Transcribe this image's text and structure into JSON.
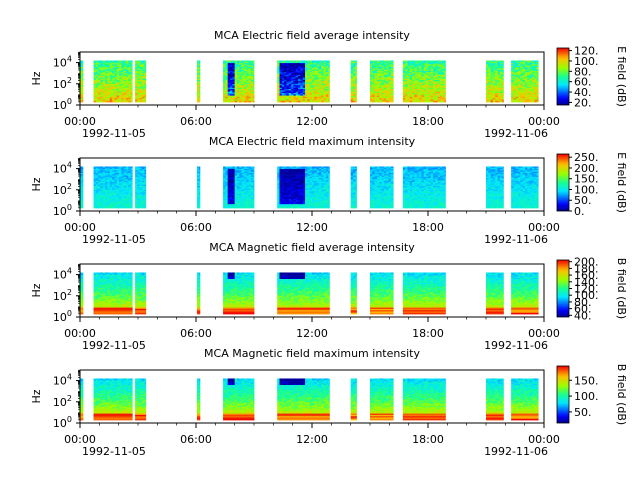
{
  "chart_data": [
    {
      "type": "heatmap",
      "title": "MCA  Electric field average intensity",
      "ylabel": "Hz",
      "y_scale": "log",
      "ylim": [
        1,
        100000
      ],
      "y_ticks": [
        {
          "exp": "0"
        },
        {
          "exp": "2"
        },
        {
          "exp": "4"
        }
      ],
      "x_range_hours": [
        0,
        24
      ],
      "x_ticks": [
        {
          "hour": 0,
          "label": "00:00"
        },
        {
          "hour": 6,
          "label": "06:00"
        },
        {
          "hour": 12,
          "label": "12:00"
        },
        {
          "hour": 18,
          "label": "18:00"
        },
        {
          "hour": 24,
          "label": "00:00"
        }
      ],
      "date_start": "1992-11-05",
      "date_end": "1992-11-06",
      "colorbar": {
        "label": "E field (dB)",
        "range": [
          15,
          125
        ],
        "ticks": [
          "20.",
          "40.",
          "60.",
          "80.",
          "100.",
          "120."
        ]
      },
      "style": "efield_avg",
      "data_segments_hours": [
        [
          0.0,
          0.15
        ],
        [
          0.7,
          2.7
        ],
        [
          2.85,
          3.4
        ],
        [
          6.05,
          6.2
        ],
        [
          7.4,
          9.0
        ],
        [
          10.2,
          12.9
        ],
        [
          14.0,
          14.3
        ],
        [
          15.0,
          16.2
        ],
        [
          16.7,
          18.9
        ],
        [
          21.0,
          21.9
        ],
        [
          22.3,
          23.7
        ]
      ]
    },
    {
      "type": "heatmap",
      "title": "MCA  Electric field maximum intensity",
      "ylabel": "Hz",
      "y_scale": "log",
      "ylim": [
        1,
        100000
      ],
      "y_ticks": [
        {
          "exp": "0"
        },
        {
          "exp": "2"
        },
        {
          "exp": "4"
        }
      ],
      "x_range_hours": [
        0,
        24
      ],
      "x_ticks": [
        {
          "hour": 0,
          "label": "00:00"
        },
        {
          "hour": 6,
          "label": "06:00"
        },
        {
          "hour": 12,
          "label": "12:00"
        },
        {
          "hour": 18,
          "label": "18:00"
        },
        {
          "hour": 24,
          "label": "00:00"
        }
      ],
      "date_start": "1992-11-05",
      "date_end": "1992-11-06",
      "colorbar": {
        "label": "E field (dB)",
        "range": [
          0,
          265
        ],
        "ticks": [
          "0.",
          "50.",
          "100.",
          "150.",
          "200.",
          "250."
        ]
      },
      "style": "efield_max",
      "data_segments_hours": [
        [
          0.0,
          0.15
        ],
        [
          0.7,
          2.7
        ],
        [
          2.85,
          3.4
        ],
        [
          6.05,
          6.2
        ],
        [
          7.4,
          9.0
        ],
        [
          10.2,
          12.9
        ],
        [
          14.0,
          14.3
        ],
        [
          15.0,
          16.2
        ],
        [
          16.7,
          18.9
        ],
        [
          21.0,
          21.9
        ],
        [
          22.3,
          23.7
        ]
      ]
    },
    {
      "type": "heatmap",
      "title": "MCA  Magnetic field average intensity",
      "ylabel": "Hz",
      "y_scale": "log",
      "ylim": [
        1,
        100000
      ],
      "y_ticks": [
        {
          "exp": "0"
        },
        {
          "exp": "2"
        },
        {
          "exp": "4"
        }
      ],
      "x_range_hours": [
        0,
        24
      ],
      "x_ticks": [
        {
          "hour": 0,
          "label": "00:00"
        },
        {
          "hour": 6,
          "label": "06:00"
        },
        {
          "hour": 12,
          "label": "12:00"
        },
        {
          "hour": 18,
          "label": "18:00"
        },
        {
          "hour": 24,
          "label": "00:00"
        }
      ],
      "date_start": "1992-11-05",
      "date_end": "1992-11-06",
      "colorbar": {
        "label": "B field (dB)",
        "range": [
          35,
          205
        ],
        "ticks": [
          "40.",
          "60.",
          "80.",
          "100.",
          "120.",
          "140.",
          "160.",
          "180.",
          "200."
        ]
      },
      "style": "bfield",
      "data_segments_hours": [
        [
          0.0,
          0.15
        ],
        [
          0.7,
          2.7
        ],
        [
          2.85,
          3.4
        ],
        [
          6.05,
          6.2
        ],
        [
          7.4,
          9.0
        ],
        [
          10.2,
          12.9
        ],
        [
          14.0,
          14.3
        ],
        [
          15.0,
          16.2
        ],
        [
          16.7,
          18.9
        ],
        [
          21.0,
          21.9
        ],
        [
          22.3,
          23.7
        ]
      ]
    },
    {
      "type": "heatmap",
      "title": "MCA  Magnetic field maximum intensity",
      "ylabel": "Hz",
      "y_scale": "log",
      "ylim": [
        1,
        100000
      ],
      "y_ticks": [
        {
          "exp": "0"
        },
        {
          "exp": "2"
        },
        {
          "exp": "4"
        }
      ],
      "x_range_hours": [
        0,
        24
      ],
      "x_ticks": [
        {
          "hour": 0,
          "label": "00:00"
        },
        {
          "hour": 6,
          "label": "06:00"
        },
        {
          "hour": 12,
          "label": "12:00"
        },
        {
          "hour": 18,
          "label": "18:00"
        },
        {
          "hour": 24,
          "label": "00:00"
        }
      ],
      "date_start": "1992-11-05",
      "date_end": "1992-11-06",
      "colorbar": {
        "label": "B field (dB)",
        "range": [
          15,
          195
        ],
        "ticks": [
          "50.",
          "100.",
          "150."
        ]
      },
      "style": "bfield",
      "data_segments_hours": [
        [
          0.0,
          0.15
        ],
        [
          0.7,
          2.7
        ],
        [
          2.85,
          3.4
        ],
        [
          6.05,
          6.2
        ],
        [
          7.4,
          9.0
        ],
        [
          10.2,
          12.9
        ],
        [
          14.0,
          14.3
        ],
        [
          15.0,
          16.2
        ],
        [
          16.7,
          18.9
        ],
        [
          21.0,
          21.9
        ],
        [
          22.3,
          23.7
        ]
      ]
    }
  ]
}
